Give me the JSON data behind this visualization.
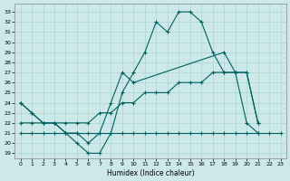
{
  "xlabel": "Humidex (Indice chaleur)",
  "background_color": "#cce8e8",
  "line_color": "#006060",
  "grid_color": "#aad4d4",
  "xlim": [
    -0.5,
    23.5
  ],
  "ylim": [
    18.5,
    33.8
  ],
  "xticks": [
    0,
    1,
    2,
    3,
    4,
    5,
    6,
    7,
    8,
    9,
    10,
    11,
    12,
    13,
    14,
    15,
    16,
    17,
    18,
    19,
    20,
    21,
    22,
    23
  ],
  "yticks": [
    19,
    20,
    21,
    22,
    23,
    24,
    25,
    26,
    27,
    28,
    29,
    30,
    31,
    32,
    33
  ],
  "line1_x": [
    0,
    1,
    2,
    3,
    4,
    5,
    6,
    7,
    8,
    9,
    10,
    11,
    12,
    13,
    14,
    15,
    16,
    17,
    18,
    19,
    20,
    21
  ],
  "line1_y": [
    24,
    23,
    22,
    22,
    21,
    20,
    19,
    19,
    21,
    25,
    27,
    29,
    32,
    31,
    33,
    33,
    32,
    29,
    27,
    27,
    22,
    21
  ],
  "line2_x": [
    0,
    1,
    2,
    3,
    4,
    5,
    6,
    7,
    8,
    9,
    10,
    18,
    19,
    20,
    21
  ],
  "line2_y": [
    24,
    23,
    22,
    22,
    21,
    21,
    20,
    21,
    24,
    27,
    26,
    29,
    27,
    27,
    22
  ],
  "line3_x": [
    0,
    1,
    2,
    3,
    4,
    5,
    6,
    7,
    8,
    9,
    10,
    11,
    12,
    13,
    14,
    15,
    16,
    17,
    18,
    19,
    20,
    21
  ],
  "line3_y": [
    22,
    22,
    22,
    22,
    22,
    22,
    22,
    23,
    23,
    24,
    24,
    25,
    25,
    25,
    26,
    26,
    26,
    27,
    27,
    27,
    27,
    22
  ],
  "line4_x": [
    0,
    1,
    2,
    3,
    4,
    5,
    6,
    7,
    8,
    9,
    10,
    11,
    12,
    13,
    14,
    15,
    16,
    17,
    18,
    19,
    20,
    21,
    22,
    23
  ],
  "line4_y": [
    21,
    21,
    21,
    21,
    21,
    21,
    21,
    21,
    21,
    21,
    21,
    21,
    21,
    21,
    21,
    21,
    21,
    21,
    21,
    21,
    21,
    21,
    21,
    21
  ]
}
